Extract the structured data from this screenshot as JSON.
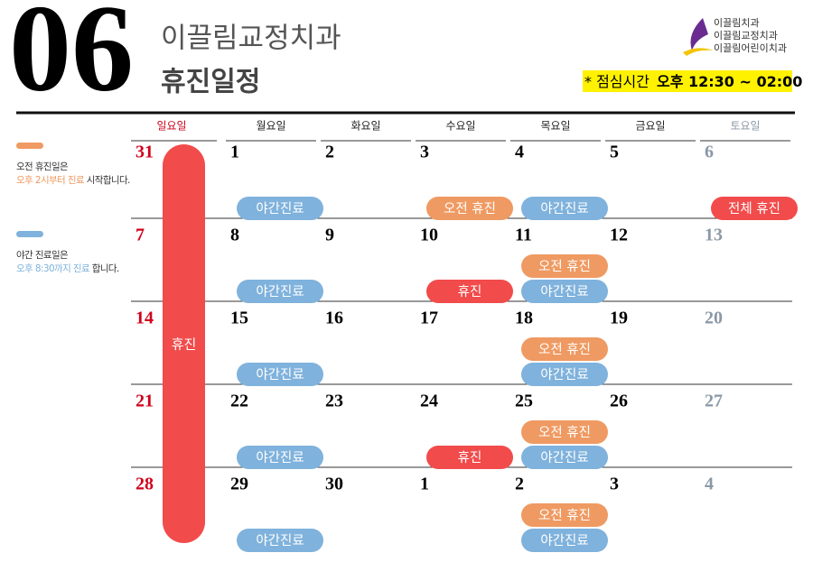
{
  "header": {
    "month": "06",
    "clinic": "이끌림교정치과",
    "title": "휴진일정",
    "lunch_label": "* 점심시간",
    "lunch_time": "오후 12:30 ~ 02:00",
    "logo_lines": [
      "이끌림치과",
      "이끌림교정치과",
      "이끌림어린이치과"
    ]
  },
  "legend": [
    {
      "color": "#ef9a62",
      "line1": "오전 휴진일은",
      "highlight": "오후 2시부터 진료",
      "rest": " 시작합니다."
    },
    {
      "color": "#7fb2dc",
      "line1": "야간 진료일은",
      "highlight": "오후 8:30까지 진료",
      "rest": " 합니다."
    }
  ],
  "weekdays": [
    "일요일",
    "월요일",
    "화요일",
    "수요일",
    "목요일",
    "금요일",
    "토요일"
  ],
  "sunday_closed": {
    "label": "휴진",
    "color": "#f24b4b"
  },
  "weeks": [
    [
      {
        "date": 31,
        "events": []
      },
      {
        "date": 1,
        "events": [
          {
            "label": "야간진료",
            "color": "#7fb2dc"
          }
        ]
      },
      {
        "date": 2,
        "events": []
      },
      {
        "date": 3,
        "events": [
          {
            "label": "오전 휴진",
            "color": "#ef9a62"
          }
        ]
      },
      {
        "date": 4,
        "events": [
          {
            "label": "야간진료",
            "color": "#7fb2dc"
          }
        ]
      },
      {
        "date": 5,
        "events": []
      },
      {
        "date": 6,
        "events": [
          {
            "label": "전체 휴진",
            "color": "#f24b4b"
          }
        ]
      }
    ],
    [
      {
        "date": 7,
        "events": []
      },
      {
        "date": 8,
        "events": [
          {
            "label": "야간진료",
            "color": "#7fb2dc"
          }
        ]
      },
      {
        "date": 9,
        "events": []
      },
      {
        "date": 10,
        "events": [
          {
            "label": "휴진",
            "color": "#f24b4b"
          }
        ]
      },
      {
        "date": 11,
        "events": [
          {
            "label": "오전 휴진",
            "color": "#ef9a62"
          },
          {
            "label": "야간진료",
            "color": "#7fb2dc"
          }
        ]
      },
      {
        "date": 12,
        "events": []
      },
      {
        "date": 13,
        "events": []
      }
    ],
    [
      {
        "date": 14,
        "events": []
      },
      {
        "date": 15,
        "events": [
          {
            "label": "야간진료",
            "color": "#7fb2dc"
          }
        ]
      },
      {
        "date": 16,
        "events": []
      },
      {
        "date": 17,
        "events": []
      },
      {
        "date": 18,
        "events": [
          {
            "label": "오전 휴진",
            "color": "#ef9a62"
          },
          {
            "label": "야간진료",
            "color": "#7fb2dc"
          }
        ]
      },
      {
        "date": 19,
        "events": []
      },
      {
        "date": 20,
        "events": []
      }
    ],
    [
      {
        "date": 21,
        "events": []
      },
      {
        "date": 22,
        "events": [
          {
            "label": "야간진료",
            "color": "#7fb2dc"
          }
        ]
      },
      {
        "date": 23,
        "events": []
      },
      {
        "date": 24,
        "events": [
          {
            "label": "휴진",
            "color": "#f24b4b"
          }
        ]
      },
      {
        "date": 25,
        "events": [
          {
            "label": "오전 휴진",
            "color": "#ef9a62"
          },
          {
            "label": "야간진료",
            "color": "#7fb2dc"
          }
        ]
      },
      {
        "date": 26,
        "events": []
      },
      {
        "date": 27,
        "events": []
      }
    ],
    [
      {
        "date": 28,
        "events": []
      },
      {
        "date": 29,
        "events": [
          {
            "label": "야간진료",
            "color": "#7fb2dc"
          }
        ]
      },
      {
        "date": 30,
        "events": []
      },
      {
        "date": 1,
        "events": []
      },
      {
        "date": 2,
        "events": [
          {
            "label": "오전 휴진",
            "color": "#ef9a62"
          },
          {
            "label": "야간진료",
            "color": "#7fb2dc"
          }
        ]
      },
      {
        "date": 3,
        "events": []
      },
      {
        "date": 4,
        "events": []
      }
    ]
  ]
}
